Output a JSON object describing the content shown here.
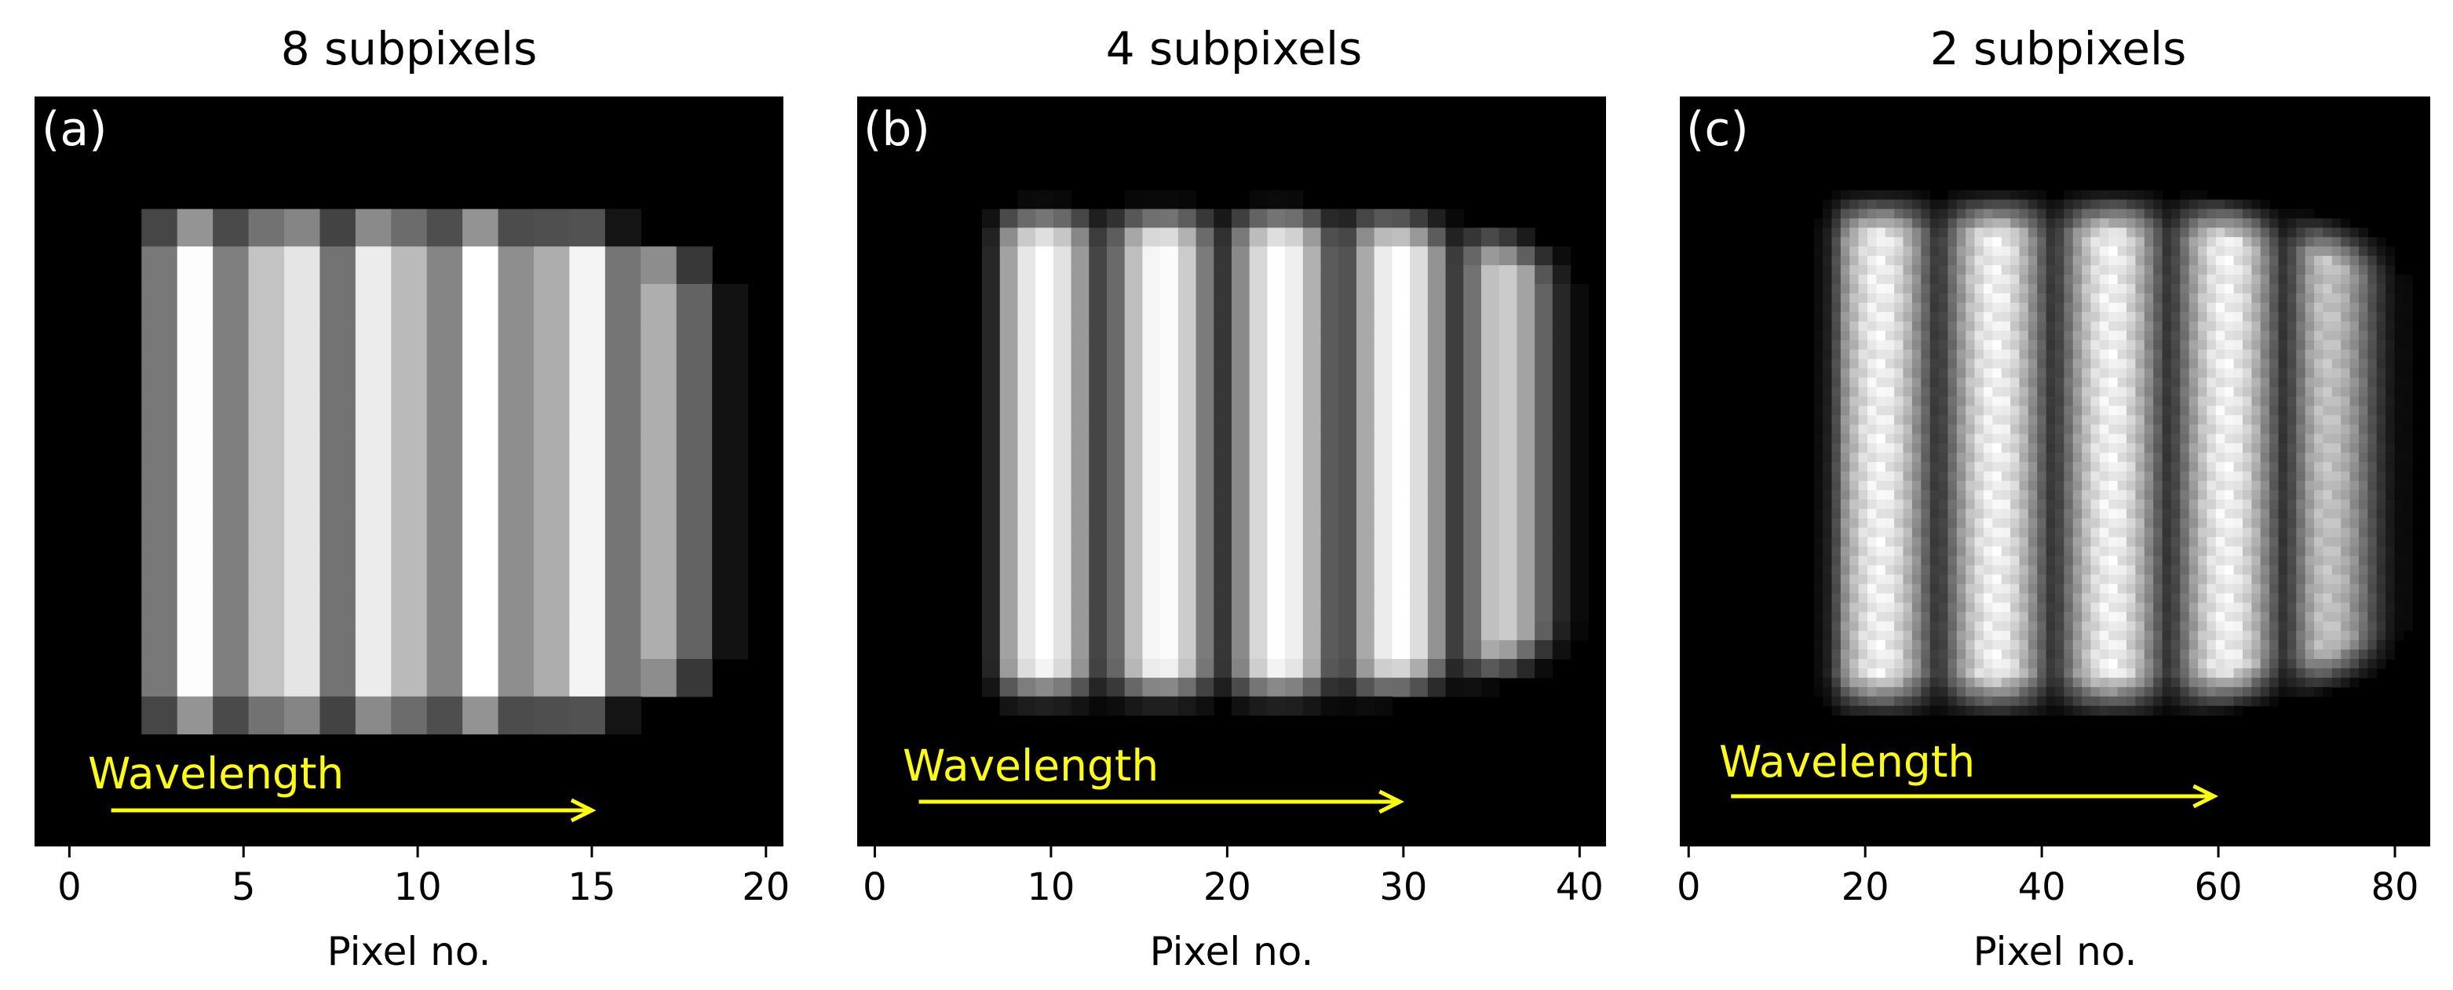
{
  "colors": {
    "background": "#ffffff",
    "image_bg": "#000000",
    "annotation": "#ffff00",
    "axis": "#000000",
    "label_white": "#ffffff"
  },
  "chart_data": [
    {
      "type": "heatmap",
      "title": "8 subpixels",
      "panel_label": "(a)",
      "xlabel": "Pixel no.",
      "ylabel": "",
      "xlim": [
        -1,
        20.5
      ],
      "xticks": [
        0,
        5,
        10,
        15,
        20
      ],
      "yticks_visible": false,
      "colormap": "gray",
      "grid": false,
      "columns": 21,
      "rows": 20,
      "stripe_count": 6,
      "annotation": {
        "text": "Wavelength",
        "arrow_x_start": 1.2,
        "arrow_x_end": 15.0
      }
    },
    {
      "type": "heatmap",
      "title": "4 subpixels",
      "panel_label": "(b)",
      "xlabel": "Pixel no.",
      "ylabel": "",
      "xlim": [
        -1,
        41.5
      ],
      "xticks": [
        0,
        10,
        20,
        30,
        40
      ],
      "yticks_visible": false,
      "colormap": "gray",
      "grid": false,
      "columns": 42,
      "rows": 40,
      "stripe_count": 5,
      "annotation": {
        "text": "Wavelength",
        "arrow_x_start": 2.5,
        "arrow_x_end": 29.8
      }
    },
    {
      "type": "heatmap",
      "title": "2 subpixels",
      "panel_label": "(c)",
      "xlabel": "Pixel no.",
      "ylabel": "",
      "xlim": [
        -1,
        84
      ],
      "xticks": [
        0,
        20,
        40,
        60,
        80
      ],
      "yticks_visible": false,
      "colormap": "gray",
      "grid": false,
      "columns": 84,
      "rows": 80,
      "stripe_count": 5,
      "annotation": {
        "text": "Wavelength",
        "arrow_x_start": 4.8,
        "arrow_x_end": 59.5
      }
    }
  ]
}
